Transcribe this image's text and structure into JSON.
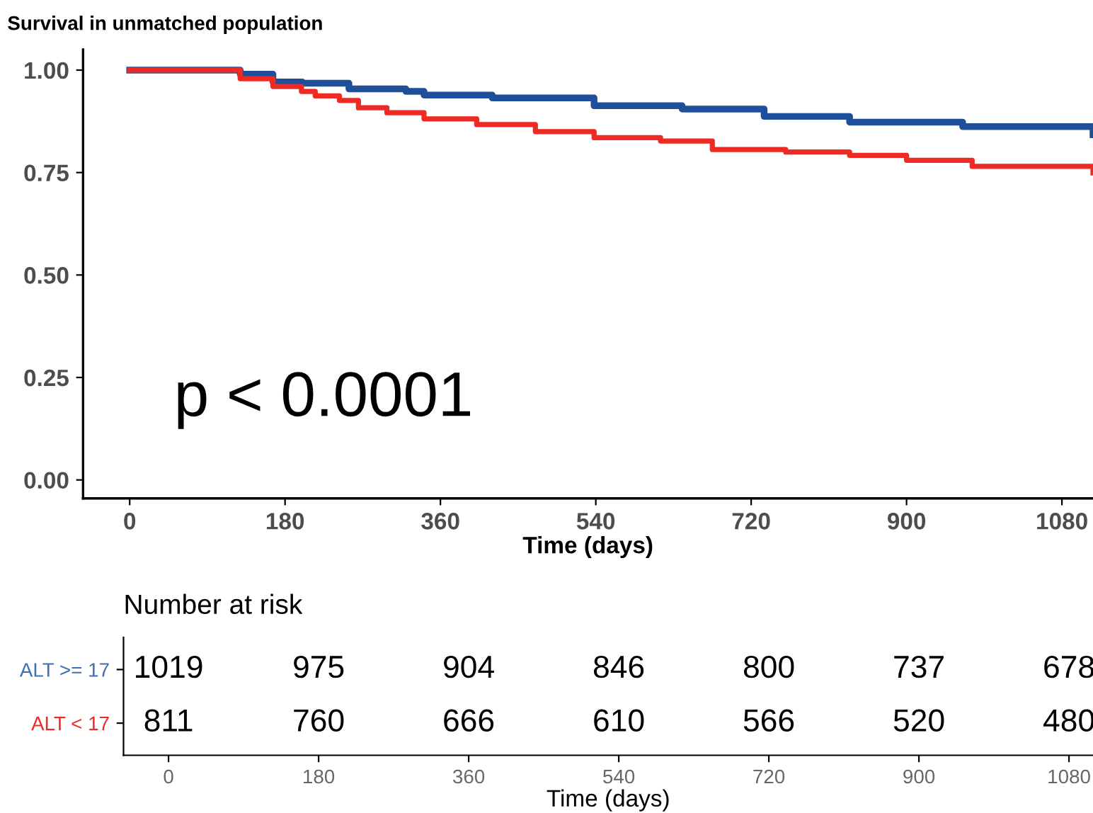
{
  "chart_data": [
    {
      "type": "step",
      "title": "Survival in unmatched population",
      "xlabel": "Time (days)",
      "xlim": [
        -54,
        1116
      ],
      "xticks": [
        0,
        180,
        360,
        540,
        720,
        900,
        1080
      ],
      "ylim": [
        -0.045,
        1.05
      ],
      "yticks": [
        {
          "value": 0,
          "label": "0.00"
        },
        {
          "value": 0.25,
          "label": "0.25"
        },
        {
          "value": 0.5,
          "label": "0.50"
        },
        {
          "value": 0.75,
          "label": "0.75"
        },
        {
          "value": 1,
          "label": "1.00"
        }
      ],
      "grid": false,
      "annotations": [
        "p < 0.0001"
      ],
      "series": [
        {
          "color": "#1f4e9a",
          "x": [
            0,
            100,
            128,
            166,
            200,
            254,
            320,
            341,
            420,
            538,
            640,
            735,
            834,
            965,
            1116
          ],
          "values": [
            1.0,
            1.0,
            0.99,
            0.971,
            0.968,
            0.954,
            0.948,
            0.939,
            0.932,
            0.913,
            0.905,
            0.887,
            0.873,
            0.862,
            0.842
          ]
        },
        {
          "color": "#ee2a24",
          "x": [
            0,
            100,
            128,
            166,
            199,
            215,
            243,
            265,
            298,
            341,
            402,
            470,
            538,
            615,
            675,
            760,
            834,
            900,
            976,
            1116
          ],
          "values": [
            1.0,
            1.0,
            0.979,
            0.96,
            0.948,
            0.937,
            0.926,
            0.908,
            0.896,
            0.881,
            0.867,
            0.85,
            0.835,
            0.827,
            0.806,
            0.8,
            0.792,
            0.78,
            0.765,
            0.749
          ]
        }
      ]
    },
    {
      "type": "heatmap",
      "title": "Number at risk",
      "xlabel": "Time (days)",
      "categories": [
        "0",
        "180",
        "360",
        "540",
        "720",
        "900",
        "1080"
      ],
      "y_categories": [
        "ALT >= 17",
        "ALT < 17"
      ],
      "colors": [
        "#3f6fb0",
        "#ee2a24"
      ],
      "data_labels": true,
      "cells": [
        [
          1019,
          975,
          904,
          846,
          800,
          737,
          678
        ],
        [
          811,
          760,
          666,
          610,
          566,
          520,
          480
        ]
      ]
    }
  ]
}
